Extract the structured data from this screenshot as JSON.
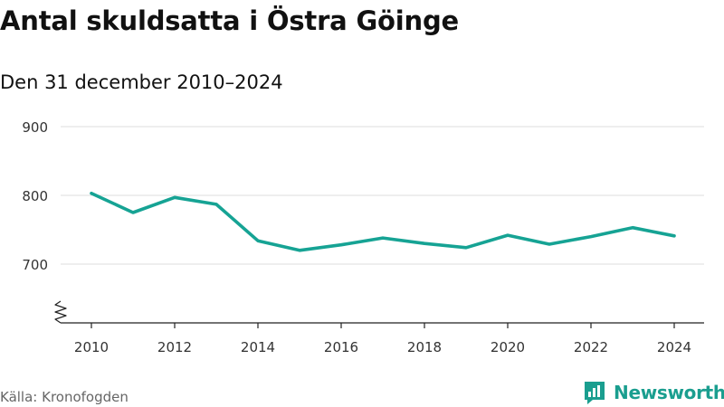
{
  "title": "Antal skuldsatta i Östra Göinge",
  "subtitle": "Den 31 december 2010–2024",
  "source": "Källa: Kronofogden",
  "brand": {
    "name": "Newsworthy",
    "icon": "bar-chart-logo-icon"
  },
  "colors": {
    "line": "#16a394",
    "grid": "#dddddd",
    "axis": "#222222",
    "brand": "#1a9e8f"
  },
  "chart_data": {
    "type": "line",
    "x": [
      2010,
      2011,
      2012,
      2013,
      2014,
      2015,
      2016,
      2017,
      2018,
      2019,
      2020,
      2021,
      2022,
      2023,
      2024
    ],
    "series": [
      {
        "values": [
          803,
          775,
          797,
          787,
          734,
          720,
          728,
          738,
          730,
          724,
          742,
          729,
          740,
          753,
          741
        ]
      }
    ],
    "x_ticks": [
      "2010",
      "2012",
      "2014",
      "2016",
      "2018",
      "2020",
      "2022",
      "2024"
    ],
    "y_ticks": [
      "700",
      "800",
      "900"
    ],
    "xlabel": "",
    "ylabel": "",
    "ylim": [
      610,
      900
    ],
    "grid": true,
    "axis_break": true,
    "legend": "none"
  }
}
